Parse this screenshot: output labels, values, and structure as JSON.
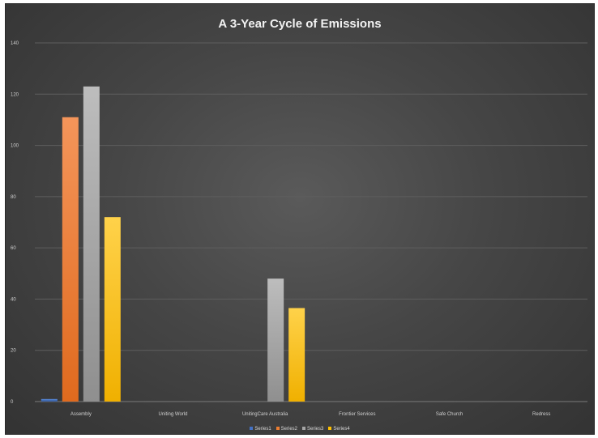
{
  "chart_data": {
    "type": "bar",
    "title": "A 3-Year Cycle of Emissions",
    "xlabel": "",
    "ylabel": "",
    "ylim": [
      0,
      140
    ],
    "yticks": [
      0,
      20,
      40,
      60,
      80,
      100,
      120,
      140
    ],
    "grid": true,
    "legend_position": "bottom",
    "categories": [
      "Assembly",
      "Uniting World",
      "UnitingCare Australia",
      "Frontier Services",
      "Safe Church",
      "Redress"
    ],
    "series": [
      {
        "name": "Series1",
        "color": "#4472c4",
        "values": [
          1,
          0,
          0,
          0,
          0,
          0
        ]
      },
      {
        "name": "Series2",
        "color": "#ed7d31",
        "values": [
          111,
          0,
          0,
          0,
          0,
          0
        ]
      },
      {
        "name": "Series3",
        "color": "#a5a5a5",
        "values": [
          123,
          0,
          48,
          0,
          0,
          0
        ]
      },
      {
        "name": "Series4",
        "color": "#ffc000",
        "values": [
          72,
          0,
          36.5,
          0,
          0,
          0
        ]
      }
    ]
  }
}
